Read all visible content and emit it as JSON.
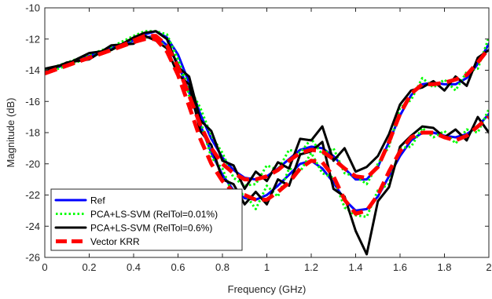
{
  "chart_data": {
    "type": "line",
    "title": "",
    "xlabel": "Frequency (GHz)",
    "ylabel": "Magnitude (dB)",
    "xlim": [
      0,
      2
    ],
    "ylim": [
      -26,
      -10
    ],
    "x_ticks": [
      0,
      0.2,
      0.4,
      0.6,
      0.8,
      1,
      1.2,
      1.4,
      1.6,
      1.8,
      2
    ],
    "x_tick_labels": [
      "0",
      "0.2",
      "0.4",
      "0.6",
      "0.8",
      "1",
      "1.2",
      "1.4",
      "1.6",
      "1.8",
      "2"
    ],
    "y_ticks": [
      -26,
      -24,
      -22,
      -20,
      -18,
      -16,
      -14,
      -12,
      -10
    ],
    "y_tick_labels": [
      "-26",
      "-24",
      "-22",
      "-20",
      "-18",
      "-16",
      "-14",
      "-12",
      "-10"
    ],
    "grid": false,
    "legend_position": "bottom-left",
    "legend": [
      {
        "label": "Ref",
        "color": "#0000ff",
        "style": "solid"
      },
      {
        "label": "PCA+LS-SVM (RelTol=0.01%)",
        "color": "#00ff00",
        "style": "dotted"
      },
      {
        "label": "PCA+LS-SVM (RelTol=0.6%)",
        "color": "#000000",
        "style": "solid"
      },
      {
        "label": "Vector KRR",
        "color": "#ff0000",
        "style": "dashed"
      }
    ],
    "series": [
      {
        "name": "Ref",
        "color": "#0000ff",
        "style": "solid",
        "curve": "upper",
        "x": [
          0,
          0.1,
          0.2,
          0.3,
          0.4,
          0.45,
          0.5,
          0.55,
          0.6,
          0.65,
          0.7,
          0.75,
          0.8,
          0.85,
          0.9,
          0.95,
          1.0,
          1.05,
          1.1,
          1.15,
          1.2,
          1.25,
          1.3,
          1.35,
          1.4,
          1.45,
          1.5,
          1.55,
          1.6,
          1.65,
          1.7,
          1.75,
          1.8,
          1.85,
          1.9,
          1.95,
          2.0
        ],
        "y": [
          -14.1,
          -13.6,
          -13.1,
          -12.6,
          -12.0,
          -11.7,
          -11.5,
          -11.9,
          -13.0,
          -14.8,
          -16.8,
          -18.4,
          -19.6,
          -20.4,
          -20.9,
          -21.0,
          -20.8,
          -20.3,
          -19.7,
          -19.1,
          -18.9,
          -19.0,
          -19.5,
          -20.3,
          -21.0,
          -21.0,
          -20.2,
          -18.6,
          -16.9,
          -15.6,
          -14.9,
          -14.8,
          -14.9,
          -14.9,
          -14.5,
          -13.6,
          -12.3
        ]
      },
      {
        "name": "Ref",
        "color": "#0000ff",
        "style": "solid",
        "curve": "lower",
        "x": [
          0,
          0.1,
          0.2,
          0.3,
          0.4,
          0.45,
          0.5,
          0.55,
          0.6,
          0.65,
          0.7,
          0.75,
          0.8,
          0.85,
          0.9,
          0.95,
          1.0,
          1.05,
          1.1,
          1.15,
          1.2,
          1.25,
          1.3,
          1.35,
          1.4,
          1.45,
          1.5,
          1.55,
          1.6,
          1.65,
          1.7,
          1.75,
          1.8,
          1.85,
          1.9,
          1.95,
          2.0
        ],
        "y": [
          -14.1,
          -13.6,
          -13.1,
          -12.6,
          -12.1,
          -11.9,
          -11.8,
          -12.4,
          -13.6,
          -15.4,
          -17.5,
          -19.3,
          -20.7,
          -21.7,
          -22.2,
          -22.3,
          -22.0,
          -21.4,
          -20.7,
          -20.0,
          -19.8,
          -20.3,
          -21.2,
          -22.3,
          -23.0,
          -22.9,
          -22.1,
          -20.8,
          -19.5,
          -18.5,
          -18.0,
          -18.0,
          -18.2,
          -18.3,
          -18.1,
          -17.6,
          -16.8
        ]
      },
      {
        "name": "PCA+LS-SVM (RelTol=0.01%)",
        "color": "#00ff00",
        "style": "dotted",
        "curve": "upper",
        "x": [
          0,
          0.1,
          0.2,
          0.3,
          0.4,
          0.45,
          0.5,
          0.55,
          0.6,
          0.65,
          0.7,
          0.75,
          0.8,
          0.85,
          0.9,
          0.95,
          1.0,
          1.05,
          1.1,
          1.15,
          1.2,
          1.25,
          1.3,
          1.35,
          1.4,
          1.45,
          1.5,
          1.55,
          1.6,
          1.65,
          1.7,
          1.75,
          1.8,
          1.85,
          1.9,
          1.95,
          2.0
        ],
        "y": [
          -14.0,
          -13.5,
          -13.0,
          -12.5,
          -11.8,
          -11.5,
          -11.5,
          -11.7,
          -13.3,
          -15.1,
          -16.4,
          -18.2,
          -19.3,
          -20.9,
          -21.4,
          -21.3,
          -20.1,
          -20.4,
          -19.1,
          -19.3,
          -18.4,
          -19.4,
          -19.0,
          -20.6,
          -20.8,
          -21.3,
          -20.0,
          -18.9,
          -16.4,
          -15.9,
          -14.5,
          -15.1,
          -14.6,
          -15.3,
          -14.1,
          -13.9,
          -11.9
        ]
      },
      {
        "name": "PCA+LS-SVM (RelTol=0.01%)",
        "color": "#00ff00",
        "style": "dotted",
        "curve": "lower",
        "x": [
          0,
          0.1,
          0.2,
          0.3,
          0.4,
          0.45,
          0.5,
          0.55,
          0.6,
          0.65,
          0.7,
          0.75,
          0.8,
          0.85,
          0.9,
          0.95,
          1.0,
          1.05,
          1.1,
          1.15,
          1.2,
          1.25,
          1.3,
          1.35,
          1.4,
          1.45,
          1.5,
          1.55,
          1.6,
          1.65,
          1.7,
          1.75,
          1.8,
          1.85,
          1.9,
          1.95,
          2.0
        ],
        "y": [
          -14.2,
          -13.7,
          -13.2,
          -12.7,
          -12.0,
          -11.9,
          -11.9,
          -12.6,
          -13.3,
          -15.6,
          -17.2,
          -19.6,
          -20.3,
          -22.1,
          -21.9,
          -22.9,
          -21.4,
          -22.1,
          -20.3,
          -20.5,
          -19.3,
          -20.6,
          -20.9,
          -22.8,
          -23.3,
          -23.4,
          -21.7,
          -21.3,
          -19.0,
          -18.9,
          -17.7,
          -18.3,
          -17.9,
          -18.7,
          -17.8,
          -18.0,
          -16.5
        ]
      },
      {
        "name": "PCA+LS-SVM (RelTol=0.6%)",
        "color": "#000000",
        "style": "solid",
        "curve": "upper",
        "x": [
          0,
          0.1,
          0.2,
          0.3,
          0.4,
          0.45,
          0.5,
          0.55,
          0.6,
          0.65,
          0.7,
          0.75,
          0.8,
          0.85,
          0.9,
          0.95,
          1.0,
          1.05,
          1.1,
          1.15,
          1.2,
          1.25,
          1.3,
          1.35,
          1.4,
          1.45,
          1.5,
          1.55,
          1.6,
          1.65,
          1.7,
          1.75,
          1.8,
          1.85,
          1.9,
          1.95,
          2.0
        ],
        "y": [
          -13.9,
          -13.6,
          -12.9,
          -12.7,
          -11.9,
          -11.6,
          -11.5,
          -12.0,
          -13.8,
          -14.4,
          -17.2,
          -17.9,
          -19.8,
          -20.1,
          -21.6,
          -20.5,
          -21.1,
          -19.9,
          -20.3,
          -18.4,
          -18.5,
          -17.6,
          -19.8,
          -19.0,
          -20.5,
          -20.2,
          -19.5,
          -18.1,
          -16.2,
          -15.3,
          -15.1,
          -14.7,
          -15.3,
          -14.4,
          -15.0,
          -13.2,
          -12.7
        ]
      },
      {
        "name": "PCA+LS-SVM (RelTol=0.6%)",
        "color": "#000000",
        "style": "solid",
        "curve": "lower",
        "x": [
          0,
          0.1,
          0.2,
          0.3,
          0.4,
          0.45,
          0.5,
          0.55,
          0.6,
          0.65,
          0.7,
          0.75,
          0.8,
          0.85,
          0.9,
          0.95,
          1.0,
          1.05,
          1.1,
          1.15,
          1.2,
          1.25,
          1.3,
          1.35,
          1.4,
          1.45,
          1.5,
          1.55,
          1.6,
          1.65,
          1.7,
          1.75,
          1.8,
          1.85,
          1.9,
          1.95,
          2.0
        ],
        "y": [
          -14.1,
          -13.5,
          -13.3,
          -12.4,
          -12.3,
          -11.8,
          -12.1,
          -12.6,
          -14.3,
          -14.9,
          -17.9,
          -18.8,
          -21.0,
          -21.3,
          -22.6,
          -21.8,
          -22.6,
          -21.0,
          -21.4,
          -19.4,
          -19.2,
          -18.6,
          -21.6,
          -22.1,
          -24.3,
          -25.8,
          -22.4,
          -21.5,
          -18.9,
          -18.2,
          -17.6,
          -17.7,
          -18.3,
          -17.8,
          -18.5,
          -17.0,
          -18.0
        ]
      },
      {
        "name": "Vector KRR",
        "color": "#ff0000",
        "style": "dashed",
        "curve": "upper",
        "x": [
          0,
          0.1,
          0.2,
          0.3,
          0.4,
          0.45,
          0.5,
          0.55,
          0.6,
          0.65,
          0.7,
          0.75,
          0.8,
          0.85,
          0.9,
          0.95,
          1.0,
          1.05,
          1.1,
          1.15,
          1.2,
          1.25,
          1.3,
          1.35,
          1.4,
          1.45,
          1.5,
          1.55,
          1.6,
          1.65,
          1.7,
          1.75,
          1.8,
          1.85,
          1.9,
          1.95,
          2.0
        ],
        "y": [
          -14.2,
          -13.7,
          -13.2,
          -12.7,
          -12.1,
          -11.8,
          -11.8,
          -12.4,
          -13.8,
          -15.6,
          -17.5,
          -19.0,
          -20.0,
          -20.6,
          -21.0,
          -21.0,
          -20.8,
          -20.4,
          -19.8,
          -19.3,
          -19.1,
          -19.2,
          -19.7,
          -20.3,
          -20.8,
          -20.9,
          -20.2,
          -18.6,
          -16.8,
          -15.5,
          -14.9,
          -14.9,
          -14.8,
          -14.6,
          -14.3,
          -13.5,
          -12.6
        ]
      },
      {
        "name": "Vector KRR",
        "color": "#ff0000",
        "style": "dashed",
        "curve": "lower",
        "x": [
          0,
          0.1,
          0.2,
          0.3,
          0.4,
          0.45,
          0.5,
          0.55,
          0.6,
          0.65,
          0.7,
          0.75,
          0.8,
          0.85,
          0.9,
          0.95,
          1.0,
          1.05,
          1.1,
          1.15,
          1.2,
          1.25,
          1.3,
          1.35,
          1.4,
          1.45,
          1.5,
          1.55,
          1.6,
          1.65,
          1.7,
          1.75,
          1.8,
          1.85,
          1.9,
          1.95,
          2.0
        ],
        "y": [
          -14.2,
          -13.7,
          -13.2,
          -12.7,
          -12.2,
          -12.0,
          -12.0,
          -12.8,
          -14.3,
          -16.3,
          -18.4,
          -20.0,
          -21.1,
          -21.8,
          -22.0,
          -22.3,
          -22.3,
          -21.8,
          -21.2,
          -20.3,
          -19.8,
          -19.9,
          -20.8,
          -22.3,
          -23.2,
          -23.0,
          -22.0,
          -20.5,
          -19.2,
          -18.3,
          -18.0,
          -18.0,
          -18.3,
          -18.5,
          -18.2,
          -17.6,
          -17.0
        ]
      }
    ]
  }
}
